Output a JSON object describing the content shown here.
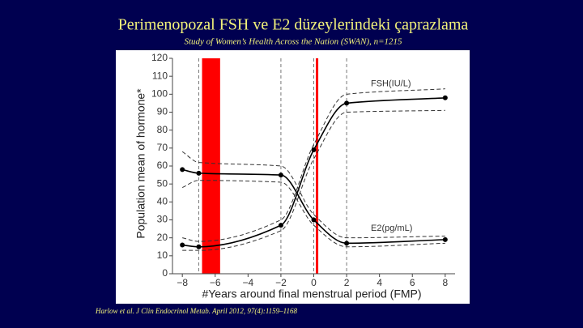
{
  "chart_data": {
    "type": "line",
    "title": "Perimenopozal FSH ve E2 düzeylerindeki çaprazlama",
    "subtitle": "Study of Women’s Health Across the Nation (SWAN), n=1215",
    "source": "Harlow et al. J Clin Endocrinol Metab. April 2012, 97(4):1159–1168",
    "x_label": "#Years around final menstrual period (FMP)",
    "y_label": "Population mean of hormone*",
    "x": [
      -8,
      -7,
      -2,
      0,
      2,
      8
    ],
    "series": [
      {
        "name": "FSH(IU/L)",
        "color": "#000000",
        "style": "solid",
        "markers": true,
        "values": [
          16,
          15,
          27,
          69,
          95,
          98
        ]
      },
      {
        "color": "#333333",
        "style": "dashed",
        "values": [
          20,
          18,
          30,
          72,
          100,
          103
        ]
      },
      {
        "color": "#333333",
        "style": "dashed",
        "values": [
          13,
          13,
          24,
          64,
          90,
          91
        ]
      },
      {
        "name": "E2(pg/mL)",
        "color": "#000000",
        "style": "solid",
        "markers": true,
        "values": [
          58,
          56,
          55,
          30,
          17,
          19
        ]
      },
      {
        "color": "#333333",
        "style": "dashed",
        "values": [
          68,
          62,
          60,
          33,
          20,
          21
        ]
      },
      {
        "color": "#333333",
        "style": "dashed",
        "values": [
          48,
          52,
          51,
          27,
          15,
          17
        ]
      }
    ],
    "xlim": [
      -8.6,
      8.6
    ],
    "ylim": [
      0,
      120
    ],
    "xticks": [
      {
        "value": -8,
        "label": "−8"
      },
      {
        "value": -6,
        "label": "−6"
      },
      {
        "value": -4,
        "label": "−4"
      },
      {
        "value": -2,
        "label": "−2"
      },
      0,
      2,
      4,
      6,
      8
    ],
    "yticks": [
      0,
      10,
      20,
      30,
      40,
      50,
      60,
      70,
      80,
      90,
      100,
      110,
      120
    ],
    "reference_lines": [
      -7,
      -2,
      0,
      2
    ],
    "highlight_band": [
      -6.8,
      -5.7
    ],
    "highlight_color": "#ff0000",
    "highlight_line": 0.2
  }
}
